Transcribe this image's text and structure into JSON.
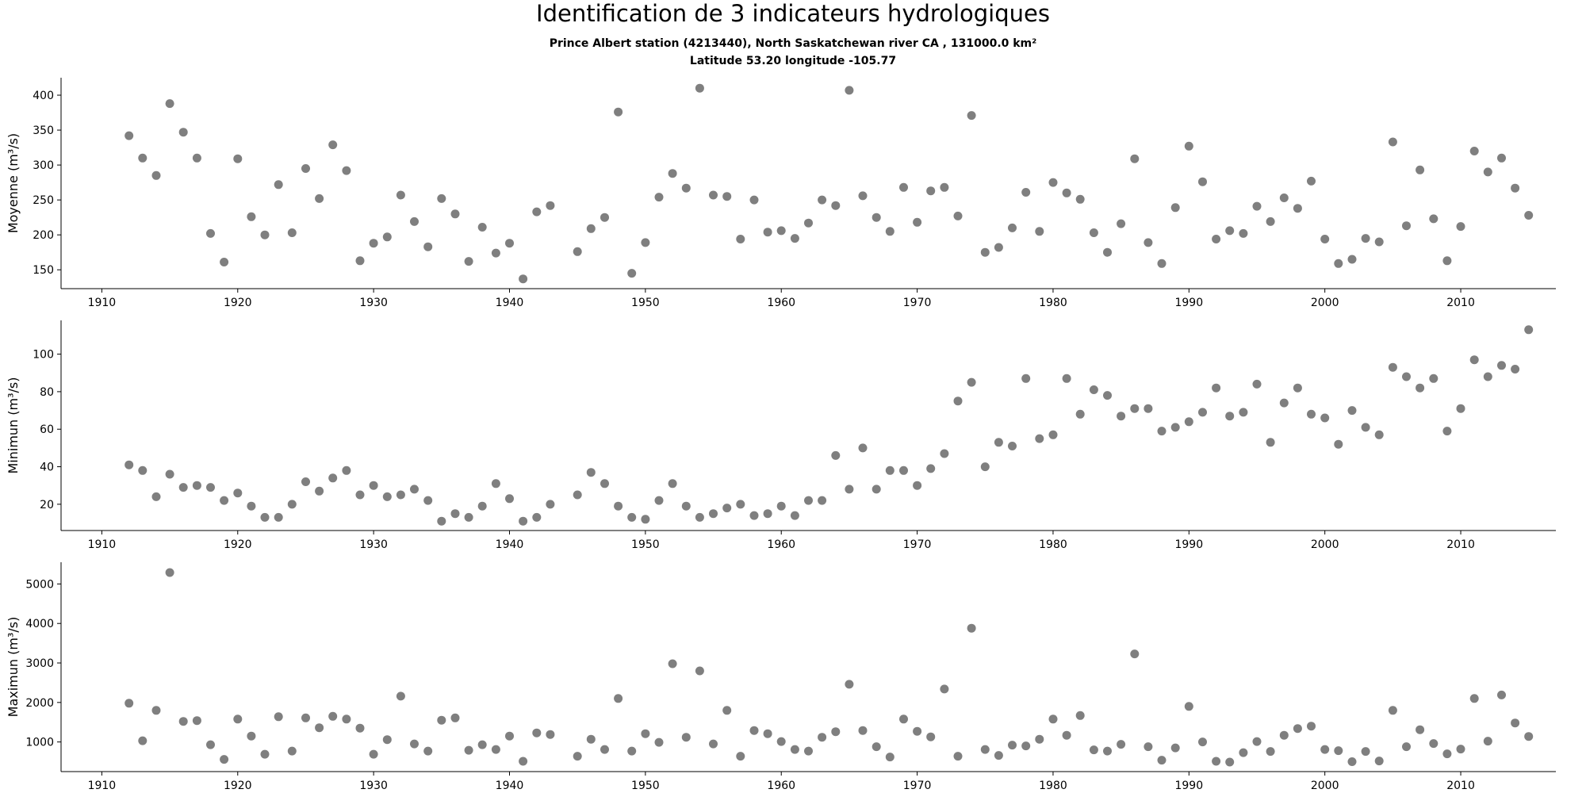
{
  "title": "Identification de 3 indicateurs hydrologiques",
  "subtitle_line1": "Prince Albert station (4213440), North Saskatchewan river CA , 131000.0 km²",
  "subtitle_line2": "Latitude 53.20 longitude -105.77",
  "colors": {
    "marker": "#7f7f7f",
    "axis": "#000000"
  },
  "chart_data": [
    {
      "type": "scatter",
      "ylabel": "Moyenne (m³/s)",
      "xlim": [
        1907,
        2017
      ],
      "ylim": [
        123,
        425
      ],
      "xticks": [
        1910,
        1920,
        1930,
        1940,
        1950,
        1960,
        1970,
        1980,
        1990,
        2000,
        2010
      ],
      "yticks": [
        150,
        200,
        250,
        300,
        350,
        400
      ],
      "grid": false,
      "x": [
        1912,
        1913,
        1914,
        1915,
        1916,
        1917,
        1918,
        1919,
        1920,
        1921,
        1922,
        1923,
        1924,
        1925,
        1926,
        1927,
        1928,
        1929,
        1930,
        1931,
        1932,
        1933,
        1934,
        1935,
        1936,
        1937,
        1938,
        1939,
        1940,
        1941,
        1942,
        1943,
        1945,
        1946,
        1947,
        1948,
        1949,
        1950,
        1951,
        1952,
        1953,
        1954,
        1955,
        1956,
        1957,
        1958,
        1959,
        1960,
        1961,
        1962,
        1963,
        1964,
        1965,
        1966,
        1967,
        1968,
        1969,
        1970,
        1971,
        1972,
        1973,
        1974,
        1975,
        1976,
        1977,
        1978,
        1979,
        1980,
        1981,
        1982,
        1983,
        1984,
        1985,
        1986,
        1987,
        1988,
        1989,
        1990,
        1991,
        1992,
        1993,
        1994,
        1995,
        1996,
        1997,
        1998,
        1999,
        2000,
        2001,
        2002,
        2003,
        2004,
        2005,
        2006,
        2007,
        2008,
        2009,
        2010,
        2011,
        2012,
        2013,
        2014,
        2015
      ],
      "y": [
        342,
        310,
        285,
        388,
        347,
        310,
        202,
        161,
        309,
        226,
        200,
        272,
        203,
        295,
        252,
        329,
        292,
        163,
        188,
        197,
        257,
        219,
        183,
        252,
        230,
        162,
        211,
        174,
        188,
        137,
        233,
        242,
        176,
        209,
        225,
        376,
        145,
        189,
        254,
        288,
        267,
        410,
        257,
        255,
        194,
        250,
        204,
        206,
        195,
        217,
        250,
        242,
        407,
        256,
        225,
        205,
        268,
        218,
        263,
        268,
        227,
        371,
        175,
        182,
        210,
        261,
        205,
        275,
        260,
        251,
        203,
        175,
        216,
        309,
        189,
        159,
        239,
        327,
        276,
        194,
        206,
        202,
        241,
        219,
        253,
        238,
        277,
        194,
        159,
        165,
        195,
        190,
        333,
        213,
        293,
        223,
        163,
        212,
        320,
        290,
        310,
        267,
        228
      ]
    },
    {
      "type": "scatter",
      "ylabel": "Minimun (m³/s)",
      "xlim": [
        1907,
        2017
      ],
      "ylim": [
        6,
        118
      ],
      "xticks": [
        1910,
        1920,
        1930,
        1940,
        1950,
        1960,
        1970,
        1980,
        1990,
        2000,
        2010
      ],
      "yticks": [
        20,
        40,
        60,
        80,
        100
      ],
      "grid": false,
      "x": [
        1912,
        1913,
        1914,
        1915,
        1916,
        1917,
        1918,
        1919,
        1920,
        1921,
        1922,
        1923,
        1924,
        1925,
        1926,
        1927,
        1928,
        1929,
        1930,
        1931,
        1932,
        1933,
        1934,
        1935,
        1936,
        1937,
        1938,
        1939,
        1940,
        1941,
        1942,
        1943,
        1945,
        1946,
        1947,
        1948,
        1949,
        1950,
        1951,
        1952,
        1953,
        1954,
        1955,
        1956,
        1957,
        1958,
        1959,
        1960,
        1961,
        1962,
        1963,
        1964,
        1965,
        1966,
        1967,
        1968,
        1969,
        1970,
        1971,
        1972,
        1973,
        1974,
        1975,
        1976,
        1977,
        1978,
        1979,
        1980,
        1981,
        1982,
        1983,
        1984,
        1985,
        1986,
        1987,
        1988,
        1989,
        1990,
        1991,
        1992,
        1993,
        1994,
        1995,
        1996,
        1997,
        1998,
        1999,
        2000,
        2001,
        2002,
        2003,
        2004,
        2005,
        2006,
        2007,
        2008,
        2009,
        2010,
        2011,
        2012,
        2013,
        2014,
        2015
      ],
      "y": [
        41,
        38,
        24,
        36,
        29,
        30,
        29,
        22,
        26,
        19,
        13,
        13,
        20,
        32,
        27,
        34,
        38,
        25,
        30,
        24,
        25,
        28,
        22,
        11,
        15,
        13,
        19,
        31,
        23,
        11,
        13,
        20,
        25,
        37,
        31,
        19,
        13,
        12,
        22,
        31,
        19,
        13,
        15,
        18,
        20,
        14,
        15,
        19,
        14,
        22,
        22,
        46,
        28,
        50,
        28,
        38,
        38,
        30,
        39,
        47,
        75,
        85,
        40,
        53,
        51,
        87,
        55,
        57,
        87,
        68,
        81,
        78,
        67,
        71,
        71,
        59,
        61,
        64,
        69,
        82,
        67,
        69,
        84,
        53,
        74,
        82,
        68,
        66,
        52,
        70,
        61,
        57,
        93,
        88,
        82,
        87,
        59,
        71,
        97,
        88,
        94,
        92,
        113
      ]
    },
    {
      "type": "scatter",
      "ylabel": "Maximun (m³/s)",
      "xlim": [
        1907,
        2017
      ],
      "ylim": [
        250,
        5550
      ],
      "xticks": [
        1910,
        1920,
        1930,
        1940,
        1950,
        1960,
        1970,
        1980,
        1990,
        2000,
        2010
      ],
      "yticks": [
        1000,
        2000,
        3000,
        4000,
        5000
      ],
      "grid": false,
      "x": [
        1912,
        1913,
        1914,
        1915,
        1916,
        1917,
        1918,
        1919,
        1920,
        1921,
        1922,
        1923,
        1924,
        1925,
        1926,
        1927,
        1928,
        1929,
        1930,
        1931,
        1932,
        1933,
        1934,
        1935,
        1936,
        1937,
        1938,
        1939,
        1940,
        1941,
        1942,
        1943,
        1945,
        1946,
        1947,
        1948,
        1949,
        1950,
        1951,
        1952,
        1953,
        1954,
        1955,
        1956,
        1957,
        1958,
        1959,
        1960,
        1961,
        1962,
        1963,
        1964,
        1965,
        1966,
        1967,
        1968,
        1969,
        1970,
        1971,
        1972,
        1973,
        1974,
        1975,
        1976,
        1977,
        1978,
        1979,
        1980,
        1981,
        1982,
        1983,
        1984,
        1985,
        1986,
        1987,
        1988,
        1989,
        1990,
        1991,
        1992,
        1993,
        1994,
        1995,
        1996,
        1997,
        1998,
        1999,
        2000,
        2001,
        2002,
        2003,
        2004,
        2005,
        2006,
        2007,
        2008,
        2009,
        2010,
        2011,
        2012,
        2013,
        2014,
        2015
      ],
      "y": [
        1980,
        1030,
        1800,
        5290,
        1520,
        1540,
        930,
        560,
        1580,
        1150,
        690,
        1640,
        770,
        1610,
        1360,
        1650,
        1580,
        1350,
        690,
        1060,
        2160,
        950,
        770,
        1550,
        1610,
        790,
        930,
        810,
        1150,
        510,
        1230,
        1190,
        640,
        1070,
        810,
        2100,
        770,
        1210,
        990,
        2980,
        1120,
        2800,
        950,
        1800,
        640,
        1290,
        1210,
        1010,
        810,
        770,
        1120,
        1260,
        2460,
        1290,
        880,
        620,
        1580,
        1270,
        1130,
        2340,
        640,
        3880,
        810,
        660,
        920,
        900,
        1070,
        1580,
        1170,
        1670,
        800,
        770,
        940,
        3230,
        880,
        540,
        850,
        1900,
        1000,
        510,
        490,
        730,
        1010,
        760,
        1170,
        1340,
        1400,
        810,
        780,
        500,
        760,
        520,
        1800,
        880,
        1310,
        960,
        700,
        820,
        2100,
        1020,
        2190,
        1480,
        1140
      ]
    }
  ]
}
